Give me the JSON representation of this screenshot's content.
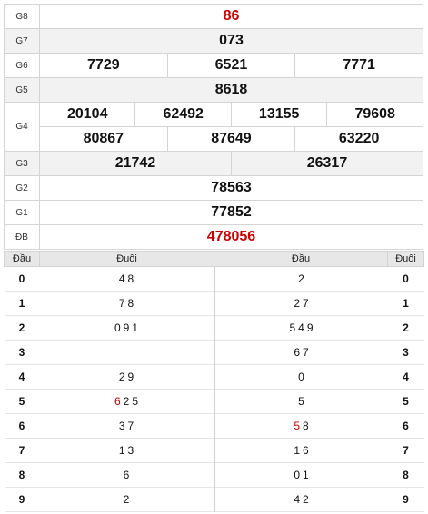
{
  "prizes": {
    "g8": {
      "label": "G8",
      "numbers": [
        "86"
      ]
    },
    "g7": {
      "label": "G7",
      "numbers": [
        "073"
      ]
    },
    "g6": {
      "label": "G6",
      "numbers": [
        "7729",
        "6521",
        "7771"
      ]
    },
    "g5": {
      "label": "G5",
      "numbers": [
        "8618"
      ]
    },
    "g4": {
      "label": "G4",
      "row1": [
        "20104",
        "62492",
        "13155",
        "79608"
      ],
      "row2": [
        "80867",
        "87649",
        "63220"
      ]
    },
    "g3": {
      "label": "G3",
      "numbers": [
        "21742",
        "26317"
      ]
    },
    "g2": {
      "label": "G2",
      "numbers": [
        "78563"
      ]
    },
    "g1": {
      "label": "G1",
      "numbers": [
        "77852"
      ]
    },
    "db": {
      "label": "ĐB",
      "numbers": [
        "478056"
      ]
    }
  },
  "colors": {
    "highlight": "#cc0000",
    "header_bg": "#e7e7e7",
    "alt_row_bg": "#f2f2f2"
  },
  "loto": {
    "headers": {
      "dau_left": "Đầu",
      "duoi_left": "Đuôi",
      "dau_right": "Đầu",
      "duoi_right": "Đuôi"
    },
    "rows": [
      {
        "head": "0",
        "tails": [
          "4",
          "8"
        ],
        "heads": [
          "2"
        ],
        "tail": "0"
      },
      {
        "head": "1",
        "tails": [
          "7",
          "8"
        ],
        "heads": [
          "2",
          "7"
        ],
        "tail": "1"
      },
      {
        "head": "2",
        "tails": [
          "0",
          "9",
          "1"
        ],
        "heads": [
          "5",
          "4",
          "9"
        ],
        "tail": "2"
      },
      {
        "head": "3",
        "tails": [],
        "heads": [
          "6",
          "7"
        ],
        "tail": "3"
      },
      {
        "head": "4",
        "tails": [
          "2",
          "9"
        ],
        "heads": [
          "0"
        ],
        "tail": "4"
      },
      {
        "head": "5",
        "tails": [
          "6",
          "2",
          "5"
        ],
        "tails_red": [
          0
        ],
        "heads": [
          "5"
        ],
        "tail": "5"
      },
      {
        "head": "6",
        "tails": [
          "3",
          "7"
        ],
        "heads": [
          "5",
          "8"
        ],
        "heads_red": [
          0
        ],
        "tail": "6"
      },
      {
        "head": "7",
        "tails": [
          "1",
          "3"
        ],
        "heads": [
          "1",
          "6"
        ],
        "tail": "7"
      },
      {
        "head": "8",
        "tails": [
          "6"
        ],
        "heads": [
          "0",
          "1"
        ],
        "tail": "8"
      },
      {
        "head": "9",
        "tails": [
          "2"
        ],
        "heads": [
          "4",
          "2"
        ],
        "tail": "9"
      }
    ]
  }
}
